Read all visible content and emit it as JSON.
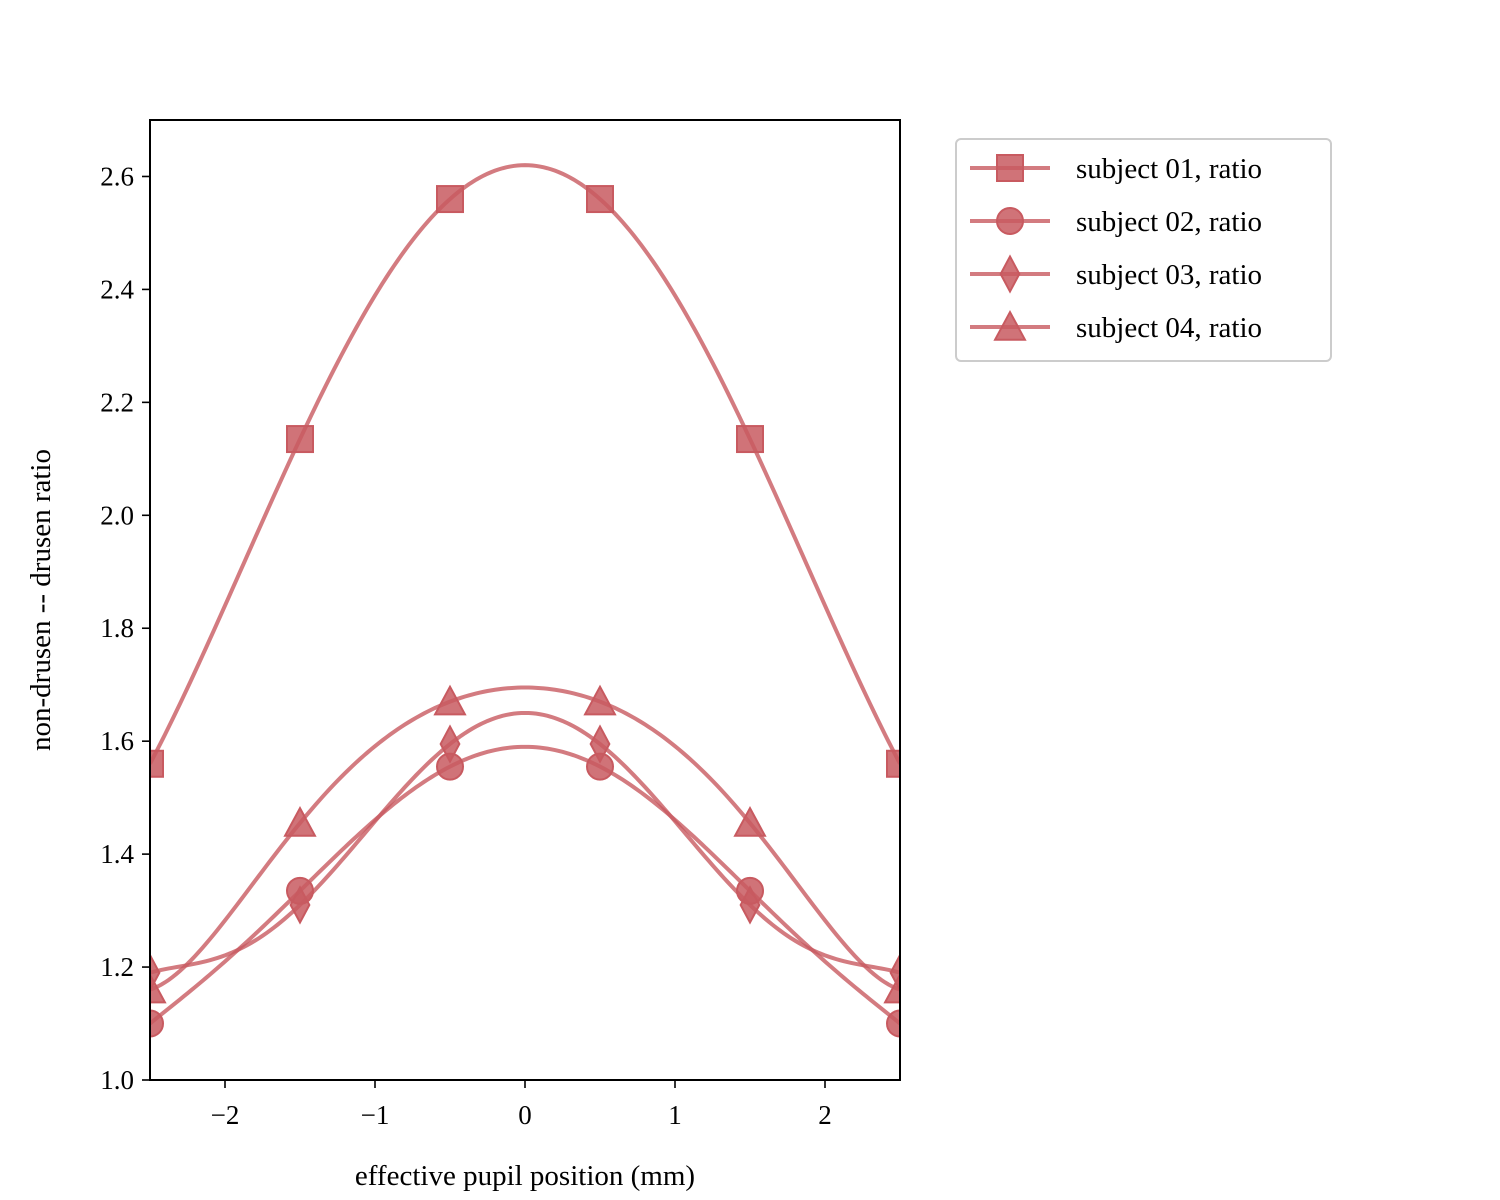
{
  "chart_data": {
    "type": "line",
    "title": "",
    "xlabel": "effective pupil position (mm)",
    "ylabel": "non-drusen -- drusen ratio",
    "xlim": [
      -2.5,
      2.5
    ],
    "ylim": [
      1.0,
      2.7
    ],
    "xticks": [
      -2,
      -1,
      0,
      1,
      2
    ],
    "xtick_labels": [
      "−2",
      "−1",
      "0",
      "1",
      "2"
    ],
    "yticks": [
      1.0,
      1.2,
      1.4,
      1.6,
      1.8,
      2.0,
      2.2,
      2.4,
      2.6
    ],
    "ytick_labels": [
      "1.0",
      "1.2",
      "1.4",
      "1.6",
      "1.8",
      "2.0",
      "2.2",
      "2.4",
      "2.6"
    ],
    "grid": false,
    "legend_position": "outside-right-top",
    "color": "#c85a60",
    "x": [
      -2.5,
      -1.5,
      -0.5,
      0.5,
      1.5,
      2.5
    ],
    "series": [
      {
        "name": "subject 01, ratio",
        "marker": "square",
        "values": [
          1.56,
          2.135,
          2.56,
          2.56,
          2.135,
          1.56
        ],
        "peak": 2.62
      },
      {
        "name": "subject 02, ratio",
        "marker": "circle",
        "values": [
          1.1,
          1.335,
          1.555,
          1.555,
          1.335,
          1.1
        ],
        "peak": 1.59
      },
      {
        "name": "subject 03, ratio",
        "marker": "diamond",
        "values": [
          1.19,
          1.31,
          1.595,
          1.595,
          1.31,
          1.19
        ],
        "peak": 1.65
      },
      {
        "name": "subject 04, ratio",
        "marker": "triangle",
        "values": [
          1.16,
          1.455,
          1.67,
          1.67,
          1.455,
          1.16
        ],
        "peak": 1.695
      }
    ]
  }
}
